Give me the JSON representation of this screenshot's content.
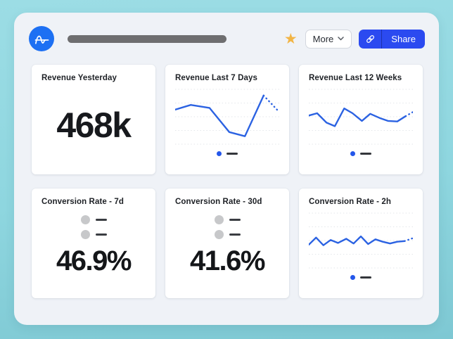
{
  "header": {
    "more_label": "More",
    "share_label": "Share"
  },
  "colors": {
    "background_teal": "#8ed6df",
    "panel": "#eff2f7",
    "card": "#ffffff",
    "logo_blue": "#1d70f3",
    "share_blue": "#2b4af0",
    "star_gold": "#f2b545",
    "chart_blue": "#2b62e2",
    "legend_dot_blue": "#2457ea",
    "gridline": "#e3e6ea",
    "placeholder_gray": "#6e6e70"
  },
  "cards": [
    {
      "title": "Revenue Yesterday",
      "type": "big_number",
      "value": "468k"
    },
    {
      "title": "Revenue Last 7 Days",
      "type": "line_chart",
      "line_color": "#2b62e2",
      "gridline_count": 5,
      "solid_points": [
        [
          0,
          38
        ],
        [
          15,
          30
        ],
        [
          33,
          35
        ],
        [
          52,
          76
        ],
        [
          67,
          83
        ],
        [
          85,
          14
        ]
      ],
      "dotted_points": [
        [
          85,
          14
        ],
        [
          100,
          42
        ]
      ],
      "legend": {
        "dot_color": "#2457ea"
      }
    },
    {
      "title": "Revenue Last 12 Weeks",
      "type": "line_chart",
      "line_color": "#2b62e2",
      "gridline_count": 5,
      "solid_points": [
        [
          0,
          48
        ],
        [
          8,
          44
        ],
        [
          17,
          60
        ],
        [
          25,
          66
        ],
        [
          34,
          36
        ],
        [
          42,
          44
        ],
        [
          51,
          57
        ],
        [
          59,
          45
        ],
        [
          68,
          52
        ],
        [
          76,
          57
        ],
        [
          85,
          58
        ],
        [
          93,
          49
        ]
      ],
      "dotted_points": [
        [
          93,
          49
        ],
        [
          100,
          42
        ]
      ],
      "legend": {
        "dot_color": "#2457ea"
      }
    },
    {
      "title": "Conversion Rate - 7d",
      "type": "funnel_summary",
      "value": "46.9%",
      "legend_placeholder_rows": 2
    },
    {
      "title": "Conversion Rate - 30d",
      "type": "funnel_summary",
      "value": "41.6%",
      "legend_placeholder_rows": 2
    },
    {
      "title": "Conversion Rate - 2h",
      "type": "line_chart",
      "line_color": "#2b62e2",
      "gridline_count": 5,
      "solid_points": [
        [
          0,
          57
        ],
        [
          7,
          45
        ],
        [
          14,
          58
        ],
        [
          21,
          49
        ],
        [
          28,
          54
        ],
        [
          36,
          47
        ],
        [
          43,
          55
        ],
        [
          50,
          43
        ],
        [
          57,
          56
        ],
        [
          64,
          48
        ],
        [
          71,
          52
        ],
        [
          78,
          55
        ],
        [
          85,
          52
        ],
        [
          92,
          51
        ]
      ],
      "dotted_points": [
        [
          92,
          51
        ],
        [
          100,
          46
        ]
      ],
      "legend": {
        "dot_color": "#2457ea"
      }
    }
  ]
}
